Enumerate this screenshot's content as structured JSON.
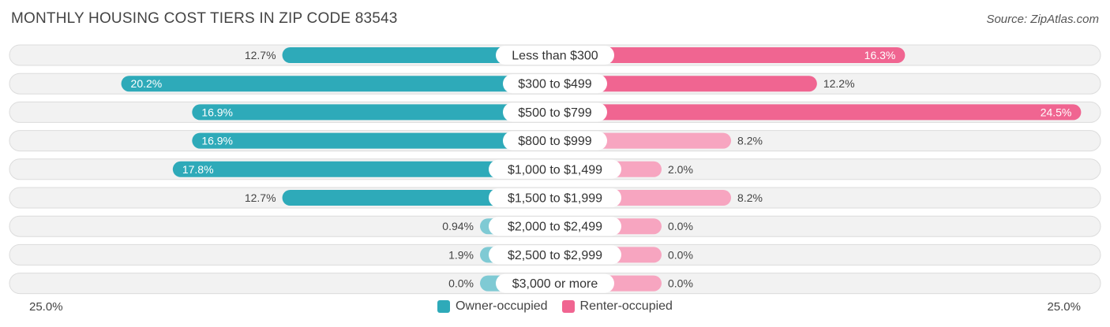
{
  "title": "MONTHLY HOUSING COST TIERS IN ZIP CODE 83543",
  "source": "Source: ZipAtlas.com",
  "axis": {
    "left_label": "25.0%",
    "right_label": "25.0%"
  },
  "legend": {
    "owner": "Owner-occupied",
    "renter": "Renter-occupied"
  },
  "colors": {
    "owner": "#2eaab9",
    "owner_light": "#7fcad4",
    "renter": "#f06591",
    "renter_light": "#f7a5c0"
  },
  "chart_data": {
    "type": "bar",
    "orientation": "diverging-horizontal",
    "xlim": [
      -25,
      25
    ],
    "categories": [
      "Less than $300",
      "$300 to $499",
      "$500 to $799",
      "$800 to $999",
      "$1,000 to $1,499",
      "$1,500 to $1,999",
      "$2,000 to $2,499",
      "$2,500 to $2,999",
      "$3,000 or more"
    ],
    "series": [
      {
        "name": "Owner-occupied",
        "values": [
          12.7,
          20.2,
          16.9,
          16.9,
          17.8,
          12.7,
          0.94,
          1.9,
          0.0
        ],
        "labels": [
          "12.7%",
          "20.2%",
          "16.9%",
          "16.9%",
          "17.8%",
          "12.7%",
          "0.94%",
          "1.9%",
          "0.0%"
        ]
      },
      {
        "name": "Renter-occupied",
        "values": [
          16.3,
          12.2,
          24.5,
          8.2,
          2.0,
          8.2,
          0.0,
          0.0,
          0.0
        ],
        "labels": [
          "16.3%",
          "12.2%",
          "24.5%",
          "8.2%",
          "2.0%",
          "8.2%",
          "0.0%",
          "0.0%",
          "0.0%"
        ]
      }
    ]
  }
}
